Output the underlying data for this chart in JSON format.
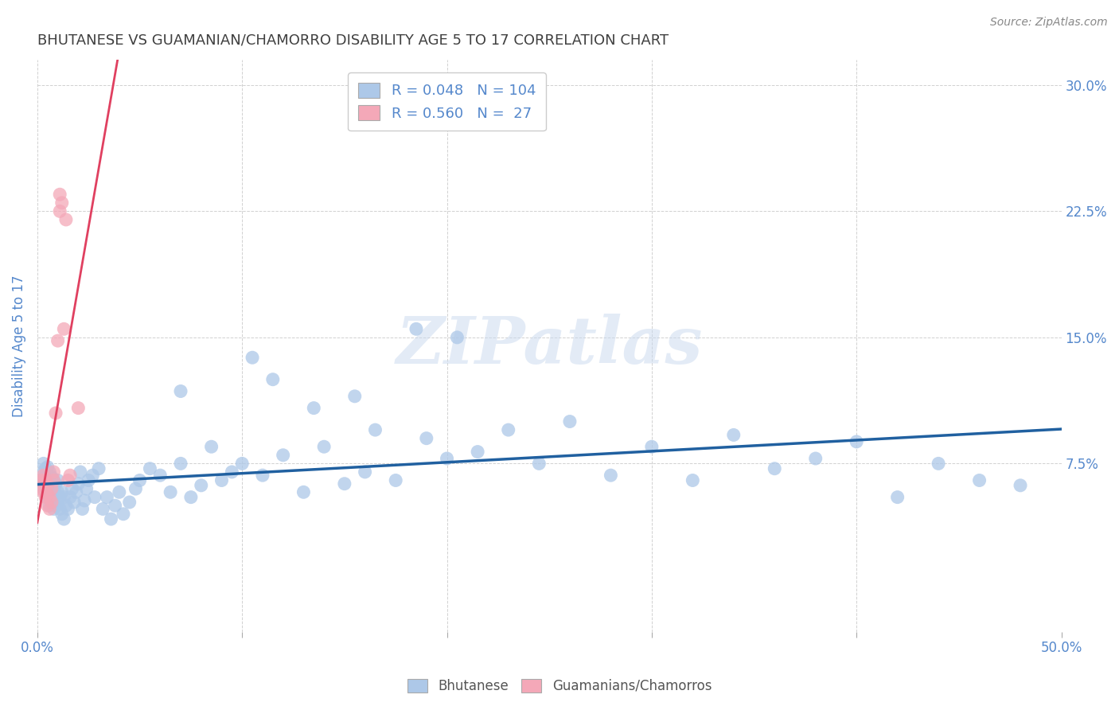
{
  "title": "BHUTANESE VS GUAMANIAN/CHAMORRO DISABILITY AGE 5 TO 17 CORRELATION CHART",
  "source": "Source: ZipAtlas.com",
  "ylabel": "Disability Age 5 to 17",
  "xlim": [
    0.0,
    0.5
  ],
  "ylim": [
    -0.025,
    0.315
  ],
  "xticks": [
    0.0,
    0.1,
    0.2,
    0.3,
    0.4,
    0.5
  ],
  "xtick_labels": [
    "0.0%",
    "",
    "",
    "",
    "",
    "50.0%"
  ],
  "yticks": [
    0.075,
    0.15,
    0.225,
    0.3
  ],
  "ytick_labels": [
    "7.5%",
    "15.0%",
    "22.5%",
    "30.0%"
  ],
  "legend_R_blue": "0.048",
  "legend_N_blue": "104",
  "legend_R_pink": "0.560",
  "legend_N_pink": "27",
  "blue_color": "#adc8e8",
  "pink_color": "#f4a8b8",
  "blue_line_color": "#2060a0",
  "pink_line_color": "#e04060",
  "title_color": "#404040",
  "axis_label_color": "#5588cc",
  "tick_color": "#5588cc",
  "watermark": "ZIPatlas",
  "blue_scatter_x": [
    0.002,
    0.003,
    0.003,
    0.003,
    0.004,
    0.004,
    0.004,
    0.004,
    0.005,
    0.005,
    0.005,
    0.005,
    0.005,
    0.006,
    0.006,
    0.006,
    0.006,
    0.006,
    0.007,
    0.007,
    0.007,
    0.007,
    0.008,
    0.008,
    0.008,
    0.008,
    0.009,
    0.009,
    0.009,
    0.01,
    0.01,
    0.01,
    0.011,
    0.011,
    0.012,
    0.012,
    0.013,
    0.013,
    0.014,
    0.015,
    0.016,
    0.017,
    0.018,
    0.019,
    0.02,
    0.021,
    0.022,
    0.023,
    0.024,
    0.025,
    0.027,
    0.028,
    0.03,
    0.032,
    0.034,
    0.036,
    0.038,
    0.04,
    0.042,
    0.045,
    0.048,
    0.05,
    0.055,
    0.06,
    0.065,
    0.07,
    0.075,
    0.08,
    0.09,
    0.095,
    0.1,
    0.11,
    0.12,
    0.13,
    0.14,
    0.15,
    0.16,
    0.175,
    0.19,
    0.2,
    0.215,
    0.23,
    0.245,
    0.26,
    0.28,
    0.3,
    0.32,
    0.34,
    0.36,
    0.38,
    0.4,
    0.42,
    0.44,
    0.46,
    0.48,
    0.07,
    0.085,
    0.105,
    0.115,
    0.135,
    0.155,
    0.165,
    0.185,
    0.205
  ],
  "blue_scatter_y": [
    0.065,
    0.07,
    0.06,
    0.075,
    0.058,
    0.063,
    0.068,
    0.072,
    0.055,
    0.06,
    0.063,
    0.068,
    0.073,
    0.05,
    0.057,
    0.062,
    0.066,
    0.07,
    0.052,
    0.058,
    0.063,
    0.067,
    0.048,
    0.055,
    0.06,
    0.065,
    0.05,
    0.057,
    0.063,
    0.052,
    0.058,
    0.065,
    0.048,
    0.055,
    0.045,
    0.058,
    0.042,
    0.055,
    0.05,
    0.048,
    0.055,
    0.06,
    0.052,
    0.058,
    0.063,
    0.07,
    0.048,
    0.053,
    0.06,
    0.065,
    0.068,
    0.055,
    0.072,
    0.048,
    0.055,
    0.042,
    0.05,
    0.058,
    0.045,
    0.052,
    0.06,
    0.065,
    0.072,
    0.068,
    0.058,
    0.075,
    0.055,
    0.062,
    0.065,
    0.07,
    0.075,
    0.068,
    0.08,
    0.058,
    0.085,
    0.063,
    0.07,
    0.065,
    0.09,
    0.078,
    0.082,
    0.095,
    0.075,
    0.1,
    0.068,
    0.085,
    0.065,
    0.092,
    0.072,
    0.078,
    0.088,
    0.055,
    0.075,
    0.065,
    0.062,
    0.118,
    0.085,
    0.138,
    0.125,
    0.108,
    0.115,
    0.095,
    0.155,
    0.15
  ],
  "pink_scatter_x": [
    0.002,
    0.002,
    0.003,
    0.003,
    0.003,
    0.004,
    0.004,
    0.004,
    0.005,
    0.005,
    0.005,
    0.006,
    0.006,
    0.007,
    0.007,
    0.008,
    0.008,
    0.009,
    0.01,
    0.011,
    0.011,
    0.012,
    0.013,
    0.014,
    0.015,
    0.016,
    0.02
  ],
  "pink_scatter_y": [
    0.06,
    0.065,
    0.058,
    0.063,
    0.068,
    0.055,
    0.06,
    0.065,
    0.05,
    0.057,
    0.063,
    0.048,
    0.055,
    0.052,
    0.06,
    0.065,
    0.07,
    0.105,
    0.148,
    0.235,
    0.225,
    0.23,
    0.155,
    0.22,
    0.065,
    0.068,
    0.108
  ]
}
